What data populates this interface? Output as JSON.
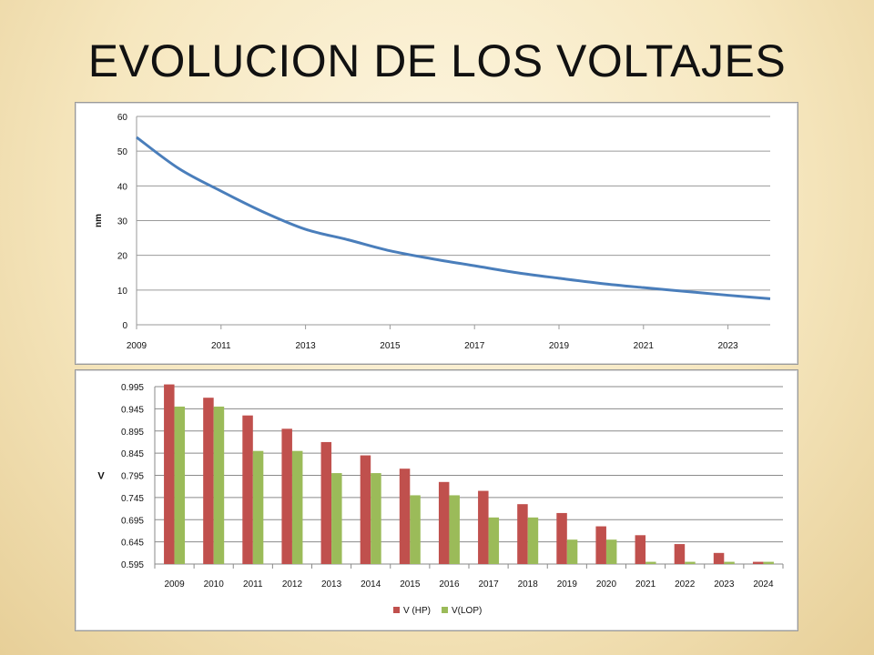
{
  "slide": {
    "title": "EVOLUCION DE LOS VOLTAJES"
  },
  "chart_data": [
    {
      "type": "line",
      "ylabel": "nm",
      "xlabel": "",
      "ylim": [
        0,
        60
      ],
      "yticks": [
        0,
        10,
        20,
        30,
        40,
        50,
        60
      ],
      "xlim": [
        2009,
        2024
      ],
      "xticks": [
        "2009",
        "2011",
        "2013",
        "2015",
        "2017",
        "2019",
        "2021",
        "2023"
      ],
      "grid": true,
      "colors": {
        "line": "#4a7ebb",
        "grid": "#9a9a9a"
      },
      "series": [
        {
          "x": [
            2009,
            2010,
            2011,
            2012,
            2013,
            2014,
            2015,
            2016,
            2017,
            2018,
            2019,
            2020,
            2021,
            2022,
            2023,
            2024
          ],
          "y": [
            54,
            45,
            38.5,
            32.5,
            27.5,
            24.5,
            21.3,
            19,
            17,
            15,
            13.4,
            11.9,
            10.7,
            9.6,
            8.5,
            7.5
          ]
        }
      ]
    },
    {
      "type": "bar",
      "ylabel": "V",
      "xlabel": "",
      "ylim": [
        0.595,
        1.0
      ],
      "yticks": [
        "0.595",
        "0.645",
        "0.695",
        "0.745",
        "0.795",
        "0.845",
        "0.895",
        "0.945",
        "0.995"
      ],
      "categories": [
        "2009",
        "2010",
        "2011",
        "2012",
        "2013",
        "2014",
        "2015",
        "2016",
        "2017",
        "2018",
        "2019",
        "2020",
        "2021",
        "2022",
        "2023",
        "2024"
      ],
      "grid": true,
      "legend": "bottom",
      "series": [
        {
          "name": "V (HP)",
          "color": "#c0504d",
          "values": [
            1.0,
            0.97,
            0.93,
            0.9,
            0.87,
            0.84,
            0.81,
            0.78,
            0.76,
            0.73,
            0.71,
            0.68,
            0.66,
            0.64,
            0.62,
            0.6
          ]
        },
        {
          "name": "V(LOP)",
          "color": "#9bbb59",
          "values": [
            0.95,
            0.95,
            0.85,
            0.85,
            0.8,
            0.8,
            0.75,
            0.75,
            0.7,
            0.7,
            0.65,
            0.65,
            0.6,
            0.6,
            0.6,
            0.6
          ]
        }
      ]
    }
  ]
}
